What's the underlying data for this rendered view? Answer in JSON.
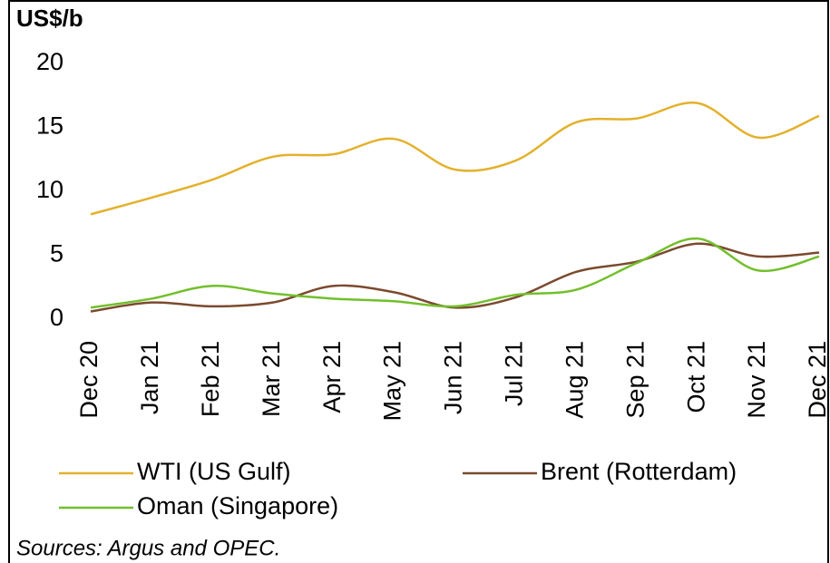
{
  "chart_data": {
    "type": "line",
    "y_label": "US$/b",
    "categories": [
      "Dec 20",
      "Jan 21",
      "Feb 21",
      "Mar 21",
      "Apr 21",
      "May 21",
      "Jun 21",
      "Jul 21",
      "Aug 21",
      "Sep 21",
      "Oct 21",
      "Nov 21",
      "Dec 21"
    ],
    "series": [
      {
        "name": "WTI (US Gulf)",
        "color": "#e3b12c",
        "values": [
          8.2,
          9.5,
          10.9,
          12.7,
          12.9,
          14.1,
          11.7,
          12.4,
          15.4,
          15.7,
          16.9,
          14.2,
          15.9
        ]
      },
      {
        "name": "Brent (Rotterdam)",
        "color": "#7b4a2e",
        "values": [
          0.6,
          1.3,
          1.0,
          1.3,
          2.6,
          2.1,
          0.9,
          1.7,
          3.7,
          4.5,
          5.9,
          4.9,
          5.2
        ]
      },
      {
        "name": "Oman (Singapore)",
        "color": "#72bf2c",
        "values": [
          0.9,
          1.6,
          2.6,
          2.0,
          1.6,
          1.4,
          1.0,
          1.9,
          2.3,
          4.4,
          6.3,
          3.8,
          4.9
        ]
      }
    ],
    "ylim": [
      0,
      20
    ],
    "yticks": [
      0,
      5,
      10,
      15,
      20
    ],
    "grid": false,
    "source": "Sources: Argus and OPEC."
  }
}
